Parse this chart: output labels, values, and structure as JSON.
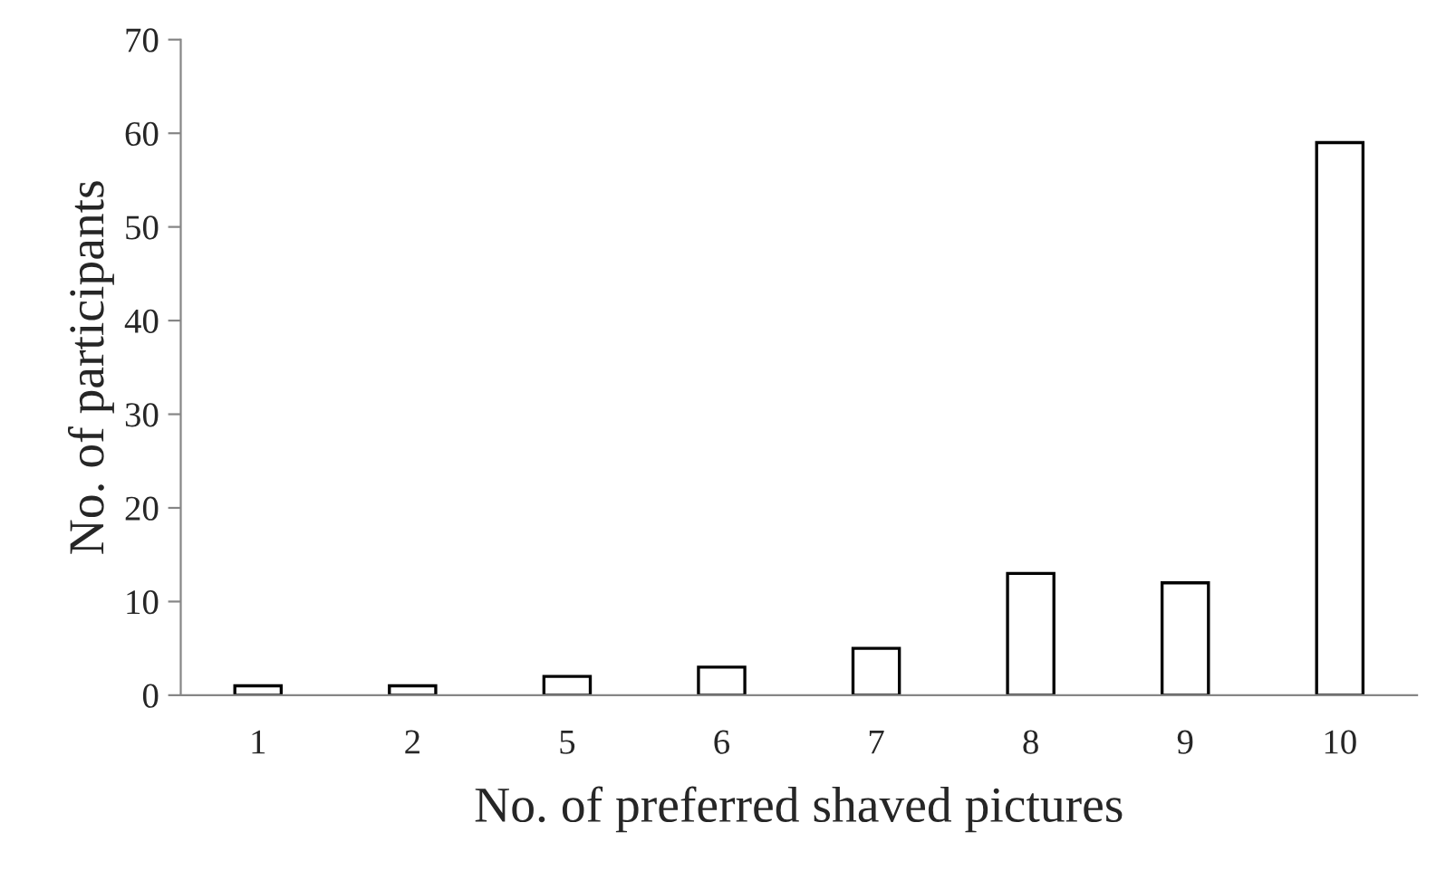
{
  "chart_data": {
    "type": "bar",
    "xlabel": "No. of preferred shaved pictures",
    "ylabel": "No. of participants",
    "categories": [
      "1",
      "2",
      "5",
      "6",
      "7",
      "8",
      "9",
      "10"
    ],
    "values": [
      1,
      1,
      2,
      3,
      5,
      13,
      12,
      59
    ],
    "color": "#ffffff",
    "ylim": [
      0,
      70
    ],
    "yticks": [
      0,
      10,
      20,
      30,
      40,
      50,
      60,
      70
    ],
    "grid": false
  }
}
